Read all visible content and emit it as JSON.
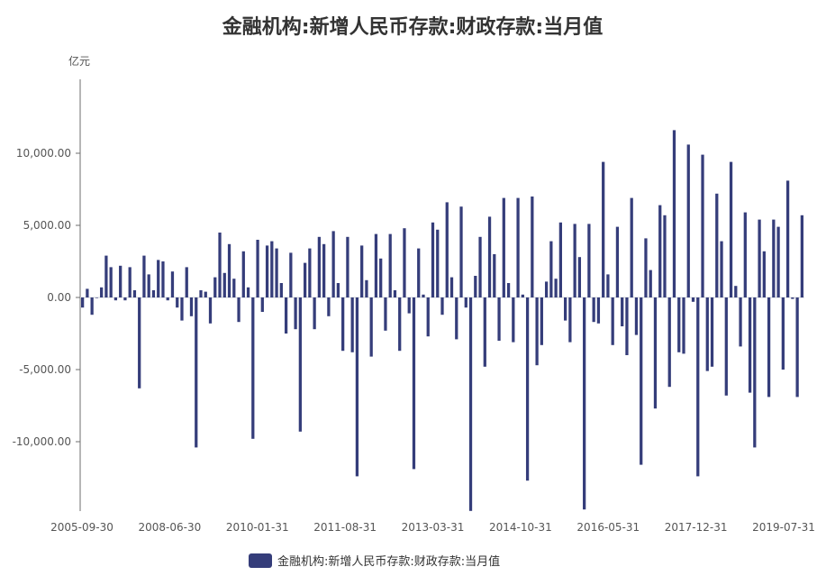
{
  "chart_data": {
    "type": "bar",
    "title": "金融机构:新增人民币存款:财政存款:当月值",
    "yunit": "亿元",
    "ylim": [
      -15000,
      15000
    ],
    "yticks": [
      10000,
      5000,
      0,
      -5000,
      -10000
    ],
    "ytick_labels": [
      "10,000.00",
      "5,000.00",
      "0.00",
      "-5,000.00",
      "-10,000.00"
    ],
    "xtick_labels": [
      "2005-09-30",
      "2008-06-30",
      "2010-01-31",
      "2011-08-31",
      "2013-03-31",
      "2014-10-31",
      "2016-05-31",
      "2017-12-31",
      "2019-07-31"
    ],
    "legend": "金融机构:新增人民币存款:财政存款:当月值",
    "color": "#353d7a",
    "series": [
      {
        "name": "金融机构:新增人民币存款:财政存款:当月值",
        "values": [
          -700,
          600,
          -1200,
          0,
          700,
          2900,
          2100,
          -200,
          2200,
          -200,
          2100,
          500,
          -6300,
          2900,
          1600,
          500,
          2600,
          2500,
          -200,
          1800,
          -700,
          -1600,
          2100,
          -1300,
          -10400,
          500,
          400,
          -1800,
          1400,
          4500,
          1700,
          3700,
          1300,
          -1700,
          3200,
          700,
          -9800,
          4000,
          -1000,
          3600,
          3900,
          3400,
          1000,
          -2500,
          3100,
          -2200,
          -9300,
          2400,
          3400,
          -2200,
          4200,
          3700,
          -1300,
          4600,
          1000,
          -3700,
          4200,
          -3800,
          -12400,
          3600,
          1200,
          -4100,
          4400,
          2700,
          -2300,
          4400,
          500,
          -3700,
          4800,
          -1100,
          -11900,
          3400,
          200,
          -2700,
          5200,
          4700,
          -1200,
          6600,
          1400,
          -2900,
          6300,
          -700,
          -14800,
          1500,
          4200,
          -4800,
          5600,
          3000,
          -3000,
          6900,
          1000,
          -3100,
          6900,
          200,
          -12700,
          7000,
          -4700,
          -3300,
          1100,
          3900,
          1300,
          5200,
          -1600,
          -3100,
          5100,
          2800,
          -14700,
          5100,
          -1700,
          -1800,
          9400,
          1600,
          -3300,
          4900,
          -2000,
          -4000,
          6900,
          -2600,
          -11600,
          4100,
          1900,
          -7700,
          6400,
          5700,
          -6200,
          11600,
          -3800,
          -3900,
          10600,
          -300,
          -12400,
          9900,
          -5100,
          -4800,
          7200,
          3900,
          -6800,
          9400,
          800,
          -3400,
          5900,
          -6600,
          -10400,
          5400,
          3200,
          -6900,
          5400,
          4900,
          -5000,
          8100,
          -100,
          -6900,
          5700
        ]
      }
    ]
  }
}
